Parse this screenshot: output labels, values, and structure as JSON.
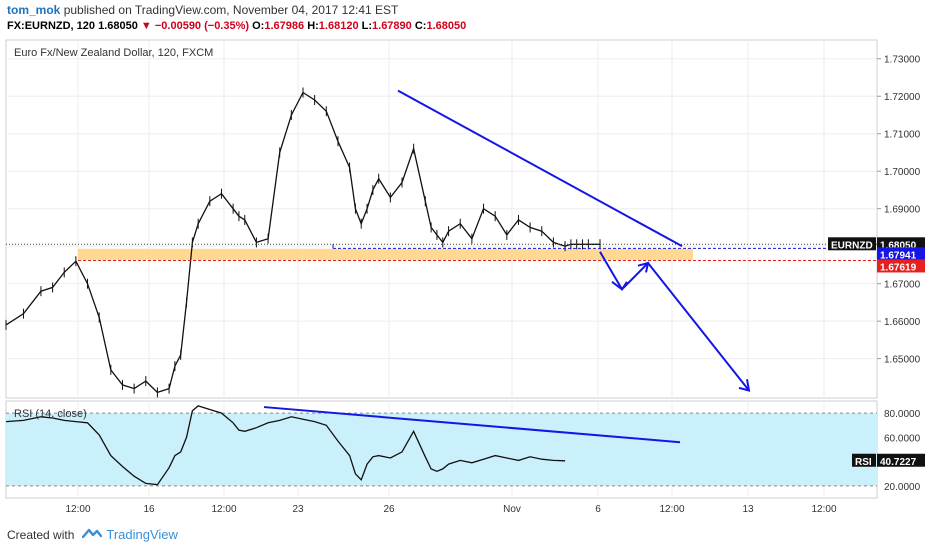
{
  "header": {
    "user": "tom_mok",
    "published": "published on TradingView.com, November 04, 2017 12:41 EST",
    "symbol": "FX:EURNZD, 120",
    "price": "1.68050",
    "change": "▼ −0.00590 (−0.35%)",
    "o_label": "O:",
    "o_val": "1.67986",
    "h_label": "H:",
    "h_val": "1.68120",
    "l_label": "L:",
    "l_val": "1.67890",
    "c_label": "C:",
    "c_val": "1.68050"
  },
  "footer": {
    "created_with": "Created with",
    "brand": "TradingView"
  },
  "colors": {
    "accent": "#1e73be",
    "down": "#d0021b",
    "trend": "#1515e6",
    "zone": "#ffd27f",
    "rsi_band": "#c9f0fb"
  },
  "chart_data": [
    {
      "type": "line",
      "title": "Euro Fx/New Zealand Dollar, 120, FXCM",
      "ylim": [
        1.6395,
        1.735
      ],
      "y_ticks": [
        "1.73000",
        "1.72000",
        "1.71000",
        "1.70000",
        "1.69000",
        "1.68000",
        "1.67000",
        "1.66000",
        "1.65000"
      ],
      "x_ticks": [
        "12:00",
        "16",
        "12:00",
        "23",
        "26",
        "Nov",
        "6",
        "12:00",
        "13",
        "12:00"
      ],
      "series": [
        {
          "name": "EURNZD",
          "x": [
            0,
            6,
            12,
            16,
            20,
            24,
            28,
            32,
            36,
            40,
            44,
            48,
            52,
            56,
            58,
            60,
            62,
            64,
            66,
            70,
            74,
            78,
            80,
            82,
            86,
            90,
            94,
            98,
            102,
            106,
            110,
            114,
            118,
            120,
            122,
            124,
            126,
            128,
            132,
            136,
            140,
            144,
            146,
            148,
            150,
            152,
            156,
            160,
            164,
            168,
            172,
            176,
            180,
            184,
            188,
            192,
            194,
            196,
            198,
            200,
            204
          ],
          "values": [
            1.659,
            1.662,
            1.668,
            1.669,
            1.673,
            1.676,
            1.67,
            1.661,
            1.647,
            1.643,
            1.642,
            1.644,
            1.641,
            1.642,
            1.648,
            1.651,
            1.665,
            1.681,
            1.686,
            1.692,
            1.694,
            1.69,
            1.688,
            1.687,
            1.681,
            1.682,
            1.705,
            1.715,
            1.721,
            1.719,
            1.716,
            1.708,
            1.701,
            1.69,
            1.686,
            1.69,
            1.695,
            1.698,
            1.693,
            1.697,
            1.706,
            1.692,
            1.685,
            1.683,
            1.681,
            1.684,
            1.686,
            1.682,
            1.69,
            1.688,
            1.683,
            1.687,
            1.685,
            1.684,
            1.681,
            1.68,
            1.6805,
            1.6805,
            1.6805,
            1.6805,
            1.6805
          ]
        }
      ],
      "price_labels": [
        {
          "text": "EURNZD",
          "value": "1.68050",
          "y": 1.6805
        },
        {
          "text": "",
          "value": "1.67941",
          "y": 1.67941
        },
        {
          "text": "",
          "value": "1.67619",
          "y": 1.67619
        }
      ],
      "support_zone": [
        1.6763,
        1.6793
      ]
    },
    {
      "type": "line",
      "title": "RSI (14, close)",
      "ylim": [
        10,
        90
      ],
      "y_ticks": [
        "80.0000",
        "60.0000",
        "20.0000"
      ],
      "series": [
        {
          "name": "RSI",
          "x": [
            0,
            6,
            12,
            16,
            20,
            24,
            28,
            32,
            36,
            40,
            44,
            48,
            52,
            56,
            58,
            60,
            62,
            64,
            66,
            70,
            74,
            78,
            80,
            82,
            86,
            90,
            94,
            98,
            102,
            106,
            110,
            114,
            118,
            120,
            122,
            124,
            126,
            128,
            132,
            136,
            140,
            144,
            146,
            148,
            150,
            152,
            156,
            160,
            164,
            168,
            172,
            176,
            180,
            184,
            188,
            192
          ],
          "values": [
            73,
            74,
            77,
            76,
            74,
            73,
            72,
            62,
            45,
            36,
            28,
            22,
            21,
            35,
            45,
            48,
            60,
            82,
            86,
            83,
            80,
            72,
            66,
            65,
            68,
            72,
            74,
            77,
            75,
            73,
            70,
            57,
            45,
            30,
            25,
            38,
            44,
            45,
            43,
            48,
            65,
            44,
            34,
            32,
            34,
            38,
            41,
            39,
            42,
            45,
            43,
            41,
            44,
            42,
            41,
            40.72
          ]
        }
      ],
      "value_label": {
        "text": "RSI",
        "value": "40.7227"
      }
    }
  ]
}
